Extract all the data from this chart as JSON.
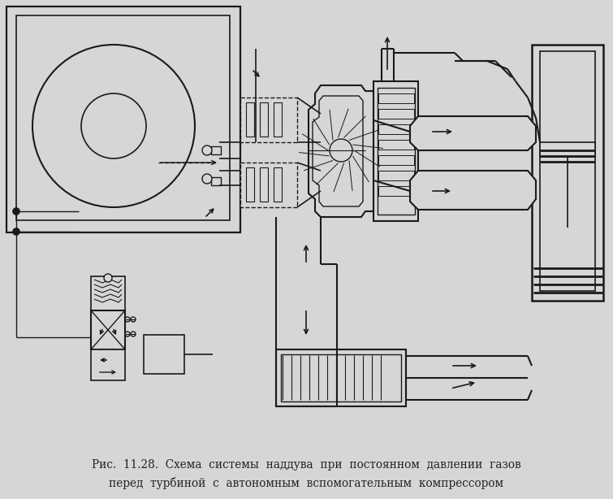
{
  "bg_color": "#d6d6d6",
  "line_color": "#1a1a1a",
  "caption_line1": "Рис.  11.28.  Схема  системы  наддува  при  постоянном  давлении  газов",
  "caption_line2": "перед  турбиной  с  автономным  вспомогательным  компрессором",
  "caption_fontsize": 9.8,
  "fig_width": 7.55,
  "fig_height": 6.14
}
